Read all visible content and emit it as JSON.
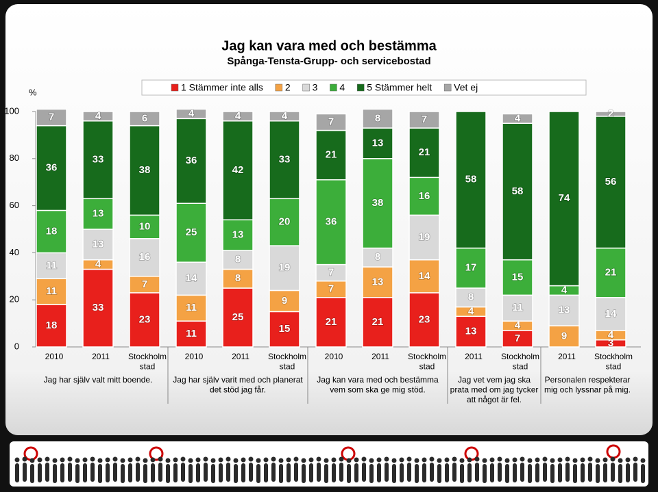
{
  "chart_data": {
    "type": "stacked_bar",
    "title": "Jag kan vara med och bestämma",
    "subtitle": "Spånga-Tensta-Grupp- och servicebostad",
    "y_label": "%",
    "groups": [
      {
        "label": "Jag har själv valt mitt boende.",
        "categories": [
          "2010",
          "2011",
          "Stockholm stad"
        ]
      },
      {
        "label": "Jag har själv varit med och planerat det stöd jag får.",
        "categories": [
          "2010",
          "2011",
          "Stockholm stad"
        ]
      },
      {
        "label": "Jag kan vara med och bestämma vem som ska ge mig stöd.",
        "categories": [
          "2010",
          "2011",
          "Stockholm stad"
        ]
      },
      {
        "label": "Jag vet vem jag ska prata med om jag tycker att något är fel.",
        "categories": [
          "2011",
          "Stockholm stad"
        ]
      },
      {
        "label": "Personalen respekterar mig och lyssnar på mig.",
        "categories": [
          "2011",
          "Stockholm stad"
        ]
      }
    ],
    "series": [
      {
        "name": "1 Stämmer inte alls",
        "color": "#e8201c",
        "values": [
          18,
          33,
          23,
          11,
          25,
          15,
          21,
          21,
          23,
          13,
          7,
          null,
          3
        ]
      },
      {
        "name": "2",
        "color": "#f4a244",
        "values": [
          11,
          4,
          7,
          11,
          8,
          9,
          7,
          13,
          14,
          4,
          4,
          9,
          4
        ]
      },
      {
        "name": "3",
        "color": "#d9d9d9",
        "values": [
          11,
          13,
          16,
          14,
          8,
          19,
          7,
          8,
          19,
          8,
          11,
          13,
          14
        ]
      },
      {
        "name": "4",
        "color": "#3cae3a",
        "values": [
          18,
          13,
          10,
          25,
          13,
          20,
          36,
          38,
          16,
          17,
          15,
          4,
          21
        ]
      },
      {
        "name": "5 Stämmer helt",
        "color": "#176b1c",
        "values": [
          36,
          33,
          38,
          36,
          42,
          33,
          21,
          13,
          21,
          58,
          58,
          74,
          56
        ]
      },
      {
        "name": "Vet ej",
        "color": "#a6a6a6",
        "values": [
          7,
          4,
          6,
          4,
          4,
          4,
          7,
          8,
          7,
          null,
          4,
          null,
          2
        ]
      }
    ],
    "ylim": [
      0,
      100
    ],
    "yticks": [
      0,
      20,
      40,
      60,
      80,
      100
    ],
    "grid": false
  }
}
